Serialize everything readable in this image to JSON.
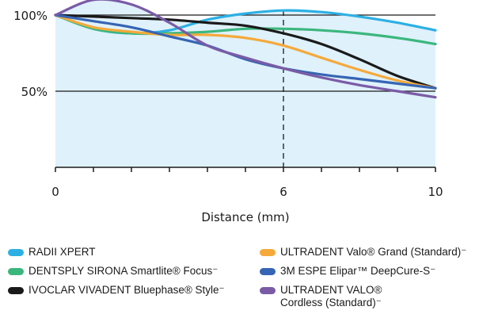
{
  "chart_data": {
    "type": "line",
    "xlabel": "Distance (mm)",
    "ylabel": "",
    "xlim": [
      0,
      10
    ],
    "ylim": [
      0,
      100
    ],
    "x_ticks": [
      0,
      6,
      10
    ],
    "y_ticks": [
      50,
      100
    ],
    "x_tick_labels": [
      "0",
      "6",
      "10"
    ],
    "y_tick_labels": [
      "50%",
      "100%"
    ],
    "reference_line_x": 6,
    "area_fill_color": "#dff1fb",
    "series": [
      {
        "name": "RADII XPERT",
        "color": "#2cb0e4",
        "x": [
          0,
          1,
          2,
          3,
          4,
          5,
          6,
          7,
          8,
          9,
          10
        ],
        "y": [
          100,
          91,
          88,
          90,
          97,
          101,
          103,
          102,
          99,
          95,
          90
        ]
      },
      {
        "name": "DENTSPLY SIRONA Smartlite® Focus⁻",
        "color": "#3bb77e",
        "x": [
          0,
          1,
          2,
          3,
          4,
          5,
          6,
          7,
          8,
          9,
          10
        ],
        "y": [
          100,
          91,
          88,
          88,
          89,
          91,
          91,
          90,
          88,
          85,
          81
        ]
      },
      {
        "name": "IVOCLAR VIVADENT Bluephase® Style⁻",
        "color": "#1a1a1a",
        "x": [
          0,
          1,
          2,
          3,
          4,
          5,
          6,
          7,
          8,
          9,
          10
        ],
        "y": [
          100,
          99,
          98,
          97,
          95,
          93,
          88,
          81,
          71,
          60,
          52
        ]
      },
      {
        "name": "ULTRADENT Valo® Grand (Standard)⁻",
        "color": "#f5a93b",
        "x": [
          0,
          1,
          2,
          3,
          4,
          5,
          6,
          7,
          8,
          9,
          10
        ],
        "y": [
          100,
          92,
          89,
          87,
          87,
          85,
          80,
          72,
          64,
          57,
          52
        ]
      },
      {
        "name": "3M ESPE Elipar™ DeepCure-S⁻",
        "color": "#3665b3",
        "x": [
          0,
          1,
          2,
          3,
          4,
          5,
          6,
          7,
          8,
          9,
          10
        ],
        "y": [
          100,
          96,
          92,
          86,
          80,
          71,
          65,
          61,
          58,
          55,
          52
        ]
      },
      {
        "name": "ULTRADENT VALO® Cordless (Standard)⁻",
        "color": "#7a5ba6",
        "x": [
          0,
          1,
          2,
          3,
          4,
          5,
          6,
          7,
          8,
          9,
          10
        ],
        "y": [
          100,
          110,
          107,
          95,
          80,
          72,
          65,
          59,
          54,
          50,
          46
        ]
      }
    ]
  }
}
